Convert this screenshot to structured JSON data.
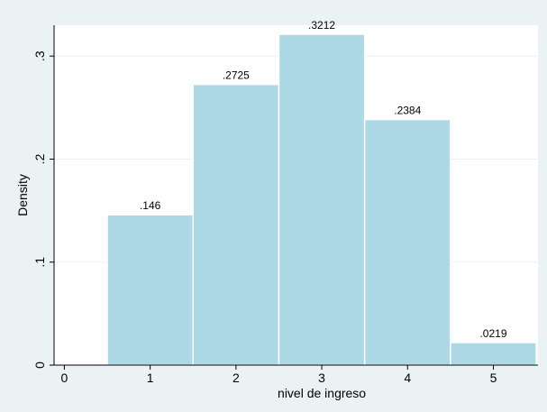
{
  "chart_data": {
    "type": "bar",
    "title": "",
    "xlabel": "nivel de ingreso",
    "ylabel": "Density",
    "x_ticks": [
      "0",
      "1",
      "2",
      "3",
      "4",
      "5"
    ],
    "x_tick_values": [
      0,
      1,
      2,
      3,
      4,
      5
    ],
    "y_ticks": [
      "0",
      ".1",
      ".2",
      ".3"
    ],
    "y_tick_values": [
      0,
      0.1,
      0.2,
      0.3
    ],
    "xlim": [
      -0.12,
      5.52
    ],
    "ylim": [
      0,
      0.3212
    ],
    "bar_width": 1,
    "categories": [
      1,
      2,
      3,
      4,
      5
    ],
    "values": [
      0.146,
      0.2725,
      0.3212,
      0.2384,
      0.0219
    ],
    "value_labels": [
      ".146",
      ".2725",
      ".3212",
      ".2384",
      ".0219"
    ],
    "grid": true,
    "legend": "none",
    "colors": {
      "outer_background": "#eaf2f3",
      "plot_background": "#ffffff",
      "bar_fill": "#add8e6",
      "bar_stroke": "#ffffff",
      "grid": "#eaf2f3",
      "axis": "#000000",
      "text": "#000000"
    }
  }
}
